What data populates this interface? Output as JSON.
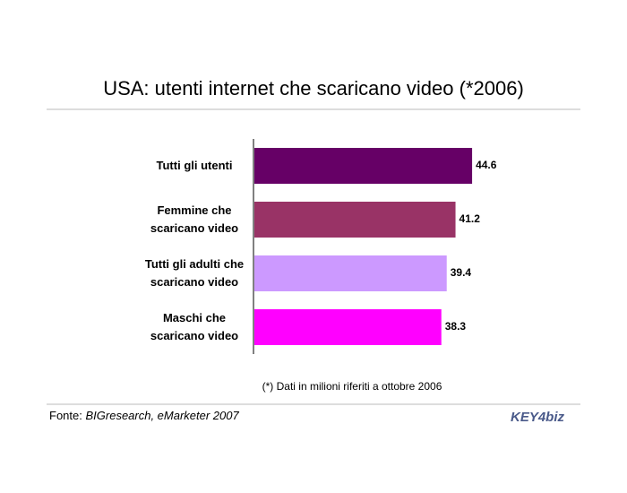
{
  "chart_data": {
    "type": "bar",
    "orientation": "horizontal",
    "title": "USA: utenti internet che scaricano video (*2006)",
    "categories": [
      "Tutti gli utenti",
      "Femmine che\nscaricano video",
      "Tutti gli adulti che\nscaricano video",
      "Maschi che\nscaricano video"
    ],
    "values": [
      44.6,
      41.2,
      39.4,
      38.3
    ],
    "colors": [
      "#660066",
      "#993366",
      "#cc99ff",
      "#ff00ff"
    ],
    "footnote": "(*) Dati in milioni riferiti a ottobre 2006",
    "source": {
      "label": "Fonte:",
      "text": "BIGresearch, eMarketer 2007"
    },
    "logo": "KEY4biz"
  }
}
